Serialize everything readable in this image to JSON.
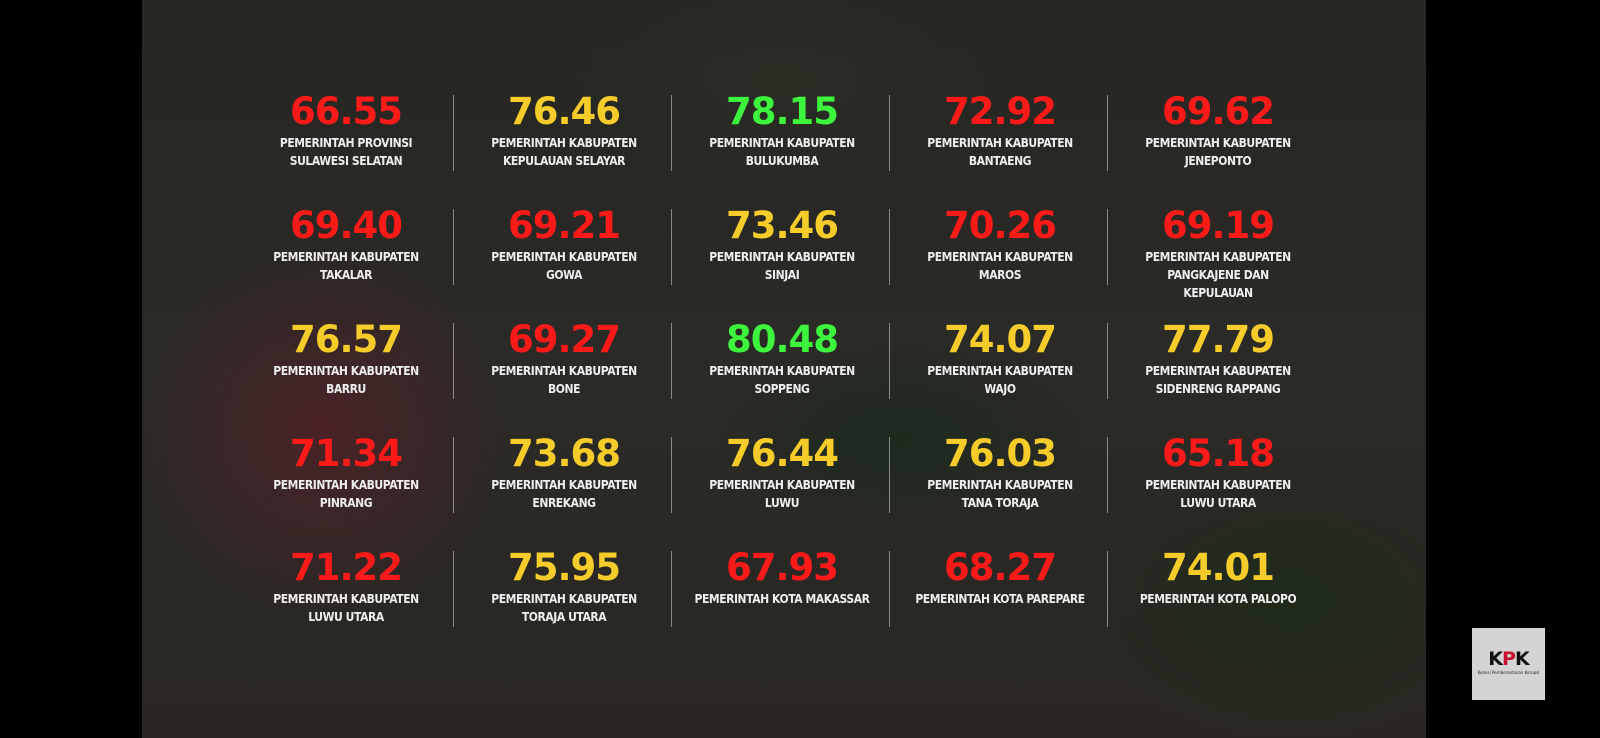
{
  "colors": {
    "red": "#ff1a1a",
    "yellow": "#f5cc2a",
    "green": "#3cf53c"
  },
  "scores": [
    {
      "value": "66.55",
      "color": "red",
      "label": "PEMERINTAH PROVINSI\nSULAWESI SELATAN"
    },
    {
      "value": "76.46",
      "color": "yellow",
      "label": "PEMERINTAH KABUPATEN\nKEPULAUAN SELAYAR"
    },
    {
      "value": "78.15",
      "color": "green",
      "label": "PEMERINTAH KABUPATEN\nBULUKUMBA"
    },
    {
      "value": "72.92",
      "color": "red",
      "label": "PEMERINTAH KABUPATEN\nBANTAENG"
    },
    {
      "value": "69.62",
      "color": "red",
      "label": "PEMERINTAH KABUPATEN\nJENEPONTO"
    },
    {
      "value": "69.40",
      "color": "red",
      "label": "PEMERINTAH KABUPATEN\nTAKALAR"
    },
    {
      "value": "69.21",
      "color": "red",
      "label": "PEMERINTAH KABUPATEN\nGOWA"
    },
    {
      "value": "73.46",
      "color": "yellow",
      "label": "PEMERINTAH KABUPATEN\nSINJAI"
    },
    {
      "value": "70.26",
      "color": "red",
      "label": "PEMERINTAH KABUPATEN\nMAROS"
    },
    {
      "value": "69.19",
      "color": "red",
      "label": "PEMERINTAH KABUPATEN\nPANGKAJENE DAN\nKEPULAUAN"
    },
    {
      "value": "76.57",
      "color": "yellow",
      "label": "PEMERINTAH KABUPATEN\nBARRU"
    },
    {
      "value": "69.27",
      "color": "red",
      "label": "PEMERINTAH KABUPATEN\nBONE"
    },
    {
      "value": "80.48",
      "color": "green",
      "label": "PEMERINTAH KABUPATEN\nSOPPENG"
    },
    {
      "value": "74.07",
      "color": "yellow",
      "label": "PEMERINTAH KABUPATEN\nWAJO"
    },
    {
      "value": "77.79",
      "color": "yellow",
      "label": "PEMERINTAH KABUPATEN\nSIDENRENG RAPPANG"
    },
    {
      "value": "71.34",
      "color": "red",
      "label": "PEMERINTAH KABUPATEN\nPINRANG"
    },
    {
      "value": "73.68",
      "color": "yellow",
      "label": "PEMERINTAH KABUPATEN\nENREKANG"
    },
    {
      "value": "76.44",
      "color": "yellow",
      "label": "PEMERINTAH KABUPATEN\nLUWU"
    },
    {
      "value": "76.03",
      "color": "yellow",
      "label": "PEMERINTAH KABUPATEN\nTANA TORAJA"
    },
    {
      "value": "65.18",
      "color": "red",
      "label": "PEMERINTAH KABUPATEN\nLUWU UTARA"
    },
    {
      "value": "71.22",
      "color": "red",
      "label": "PEMERINTAH KABUPATEN\nLUWU UTARA"
    },
    {
      "value": "75.95",
      "color": "yellow",
      "label": "PEMERINTAH KABUPATEN\nTORAJA UTARA"
    },
    {
      "value": "67.93",
      "color": "red",
      "label": "PEMERINTAH KOTA MAKASSAR"
    },
    {
      "value": "68.27",
      "color": "red",
      "label": "PEMERINTAH KOTA PAREPARE"
    },
    {
      "value": "74.01",
      "color": "yellow",
      "label": "PEMERINTAH KOTA PALOPO"
    }
  ],
  "logo": {
    "text_a": "K",
    "text_b": "P",
    "text_c": "K",
    "subtitle": "Komisi Pemberantasan Korupsi"
  }
}
